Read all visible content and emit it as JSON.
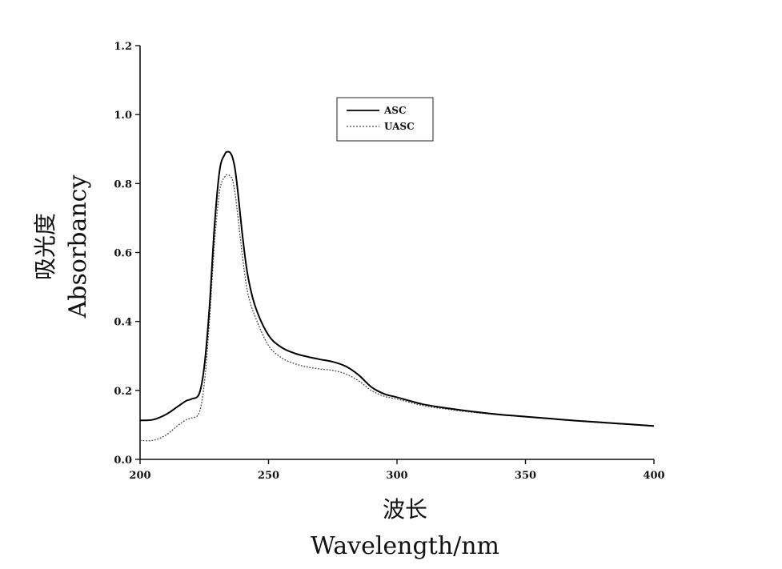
{
  "chart_data": {
    "type": "line",
    "xlabel_cn": "波长",
    "xlabel": "Wavelength/nm",
    "ylabel_cn": "吸光度",
    "ylabel": "Absorbancy",
    "xlim": [
      200,
      400
    ],
    "ylim": [
      0.0,
      1.2
    ],
    "xticks": [
      "200",
      "250",
      "300",
      "350",
      "400"
    ],
    "yticks": [
      "0.0",
      "0.2",
      "0.4",
      "0.6",
      "0.8",
      "1.0",
      "1.2"
    ],
    "grid": false,
    "legend_position": "top-center",
    "series": [
      {
        "name": "ASC",
        "style": "solid",
        "color": "#000000",
        "x": [
          200,
          205,
          210,
          215,
          218,
          220,
          223,
          225,
          227,
          229,
          231,
          233,
          234,
          235,
          236,
          237,
          238,
          240,
          242,
          245,
          250,
          255,
          260,
          265,
          270,
          275,
          280,
          285,
          290,
          295,
          300,
          310,
          320,
          330,
          340,
          350,
          360,
          370,
          380,
          390,
          400
        ],
        "y": [
          0.113,
          0.115,
          0.13,
          0.155,
          0.17,
          0.175,
          0.19,
          0.27,
          0.44,
          0.68,
          0.84,
          0.885,
          0.892,
          0.89,
          0.875,
          0.84,
          0.78,
          0.64,
          0.53,
          0.44,
          0.36,
          0.325,
          0.308,
          0.298,
          0.29,
          0.283,
          0.27,
          0.245,
          0.21,
          0.19,
          0.18,
          0.16,
          0.148,
          0.138,
          0.13,
          0.124,
          0.118,
          0.112,
          0.107,
          0.102,
          0.097
        ]
      },
      {
        "name": "UASC",
        "style": "dotted",
        "color": "#444444",
        "x": [
          200,
          205,
          210,
          215,
          218,
          220,
          223,
          225,
          227,
          229,
          231,
          233,
          234,
          235,
          236,
          237,
          238,
          240,
          242,
          245,
          250,
          255,
          260,
          265,
          270,
          275,
          280,
          285,
          290,
          295,
          300,
          310,
          320,
          330,
          340,
          350,
          360,
          370,
          380,
          390,
          400
        ],
        "y": [
          0.055,
          0.055,
          0.07,
          0.1,
          0.115,
          0.12,
          0.135,
          0.22,
          0.4,
          0.63,
          0.78,
          0.82,
          0.825,
          0.822,
          0.81,
          0.77,
          0.71,
          0.58,
          0.48,
          0.41,
          0.33,
          0.295,
          0.278,
          0.268,
          0.262,
          0.258,
          0.248,
          0.228,
          0.2,
          0.183,
          0.175,
          0.156,
          0.145,
          0.136,
          0.129,
          0.123,
          0.117,
          0.111,
          0.106,
          0.101,
          0.096
        ]
      }
    ]
  }
}
